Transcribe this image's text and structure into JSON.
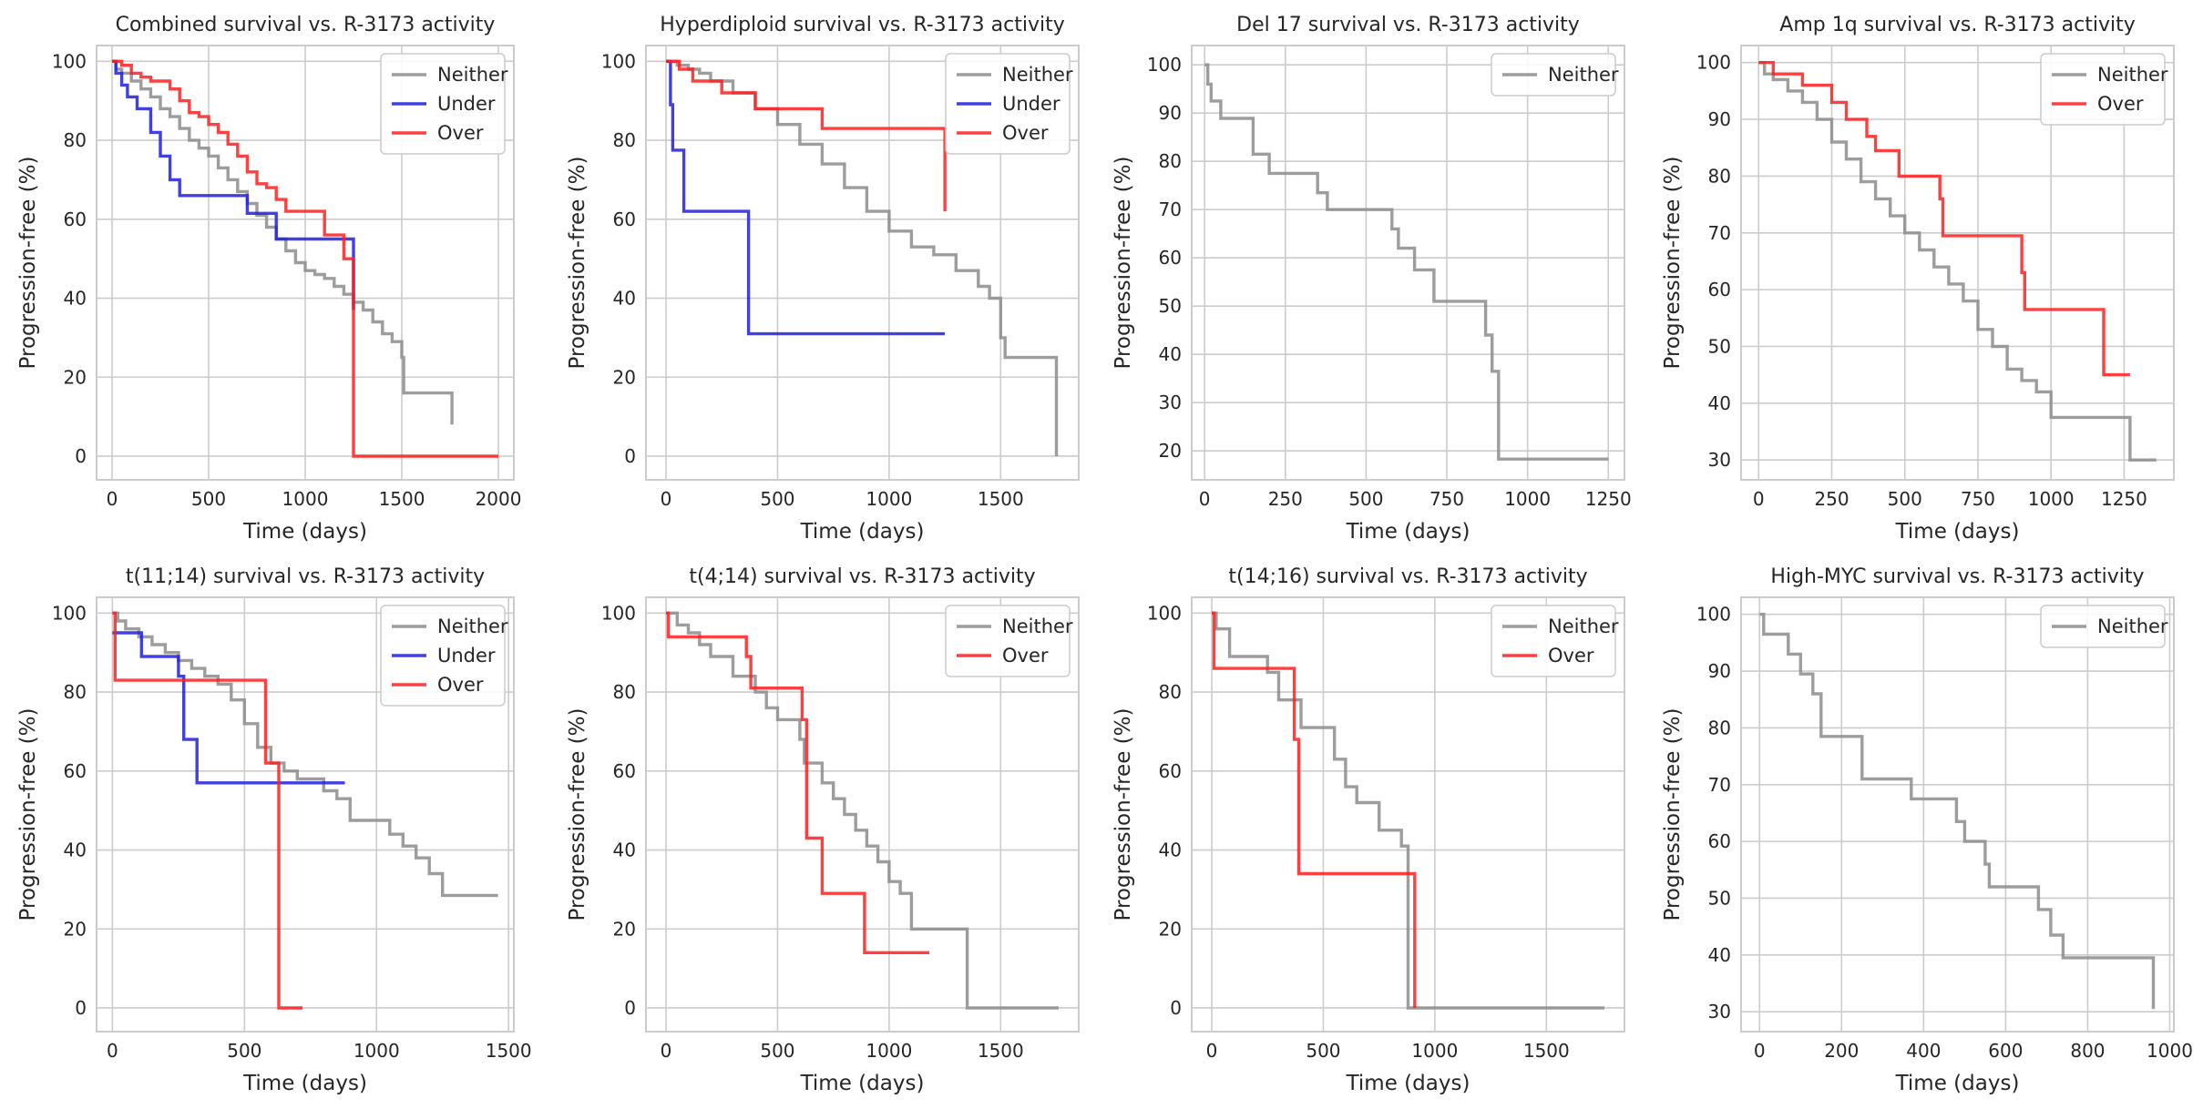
{
  "figure": {
    "colors": {
      "Neither": "#8c8c8c",
      "Under": "#1f1fe0",
      "Over": "#ff1f1f"
    }
  },
  "chart_data": [
    {
      "type": "line",
      "step": true,
      "title": "Combined survival vs. R-3173 activity",
      "xlabel": "Time (days)",
      "ylabel": "Progression-free (%)",
      "xlim": [
        -80,
        2080
      ],
      "ylim": [
        -6,
        104
      ],
      "xticks": [
        0,
        500,
        1000,
        1500,
        2000
      ],
      "yticks": [
        0,
        20,
        40,
        60,
        80,
        100
      ],
      "legend": "top-right",
      "series": [
        {
          "name": "Neither",
          "x": [
            0,
            20,
            50,
            100,
            150,
            200,
            250,
            300,
            350,
            400,
            450,
            500,
            550,
            600,
            650,
            700,
            750,
            800,
            850,
            900,
            950,
            1000,
            1050,
            1100,
            1150,
            1200,
            1250,
            1300,
            1350,
            1400,
            1450,
            1500,
            1510,
            1750,
            1760
          ],
          "y": [
            100,
            98,
            97,
            95,
            93,
            91,
            88,
            86,
            83,
            80,
            78,
            76,
            73,
            70,
            67,
            64,
            61,
            58,
            55,
            52,
            49,
            47,
            46,
            45,
            43,
            41,
            39,
            37,
            34,
            31,
            29,
            25,
            16,
            16,
            8
          ]
        },
        {
          "name": "Under",
          "x": [
            0,
            20,
            50,
            80,
            130,
            200,
            250,
            300,
            350,
            700,
            850,
            1250
          ],
          "y": [
            100,
            97,
            94,
            91,
            88,
            82,
            76,
            70,
            66,
            61.5,
            55,
            37
          ]
        },
        {
          "name": "Over",
          "x": [
            0,
            50,
            100,
            150,
            200,
            300,
            350,
            400,
            450,
            500,
            550,
            600,
            650,
            700,
            750,
            800,
            850,
            900,
            1100,
            1200,
            1250,
            2000
          ],
          "y": [
            100,
            99,
            97,
            96,
            95,
            93,
            90,
            87,
            86,
            84,
            82,
            79,
            76,
            72,
            69,
            68,
            65,
            62,
            56,
            50,
            0,
            0
          ]
        }
      ]
    },
    {
      "type": "line",
      "step": true,
      "title": "Hyperdiploid survival vs. R-3173 activity",
      "xlabel": "Time (days)",
      "ylabel": "Progression-free (%)",
      "xlim": [
        -90,
        1850
      ],
      "ylim": [
        -6,
        104
      ],
      "xticks": [
        0,
        500,
        1000,
        1500
      ],
      "yticks": [
        0,
        20,
        40,
        60,
        80,
        100
      ],
      "legend": "top-right",
      "series": [
        {
          "name": "Neither",
          "x": [
            0,
            50,
            100,
            150,
            200,
            300,
            400,
            500,
            600,
            700,
            800,
            900,
            1000,
            1100,
            1200,
            1300,
            1400,
            1450,
            1500,
            1520,
            1750
          ],
          "y": [
            100,
            99,
            98,
            97,
            95,
            92,
            88,
            84,
            79,
            74,
            68,
            62,
            57,
            53,
            51,
            47,
            43,
            40,
            30,
            25,
            0
          ]
        },
        {
          "name": "Under",
          "x": [
            0,
            20,
            30,
            80,
            370,
            1250
          ],
          "y": [
            100,
            89,
            77.5,
            62,
            31,
            31
          ]
        },
        {
          "name": "Over",
          "x": [
            0,
            60,
            120,
            250,
            400,
            700,
            1250
          ],
          "y": [
            100,
            98,
            95,
            92,
            88,
            83,
            62
          ]
        }
      ]
    },
    {
      "type": "line",
      "step": true,
      "title": "Del 17 survival vs. R-3173 activity",
      "xlabel": "Time (days)",
      "ylabel": "Progression-free (%)",
      "xlim": [
        -40,
        1300
      ],
      "ylim": [
        14,
        104
      ],
      "xticks": [
        0,
        250,
        500,
        750,
        1000,
        1250
      ],
      "yticks": [
        20,
        30,
        40,
        50,
        60,
        70,
        80,
        90,
        100
      ],
      "legend": "top-right",
      "series": [
        {
          "name": "Neither",
          "x": [
            0,
            10,
            20,
            50,
            150,
            200,
            350,
            380,
            580,
            600,
            650,
            710,
            870,
            890,
            910,
            1250
          ],
          "y": [
            100,
            96,
            92.5,
            88.9,
            81.5,
            77.5,
            73.5,
            70,
            66,
            62,
            57.5,
            51,
            44,
            36.5,
            18.3,
            18.3
          ]
        }
      ]
    },
    {
      "type": "line",
      "step": true,
      "title": "Amp 1q survival vs. R-3173 activity",
      "xlabel": "Time (days)",
      "ylabel": "Progression-free (%)",
      "xlim": [
        -60,
        1420
      ],
      "ylim": [
        26.5,
        103
      ],
      "xticks": [
        0,
        250,
        500,
        750,
        1000,
        1250
      ],
      "yticks": [
        30,
        40,
        50,
        60,
        70,
        80,
        90,
        100
      ],
      "legend": "top-right",
      "series": [
        {
          "name": "Neither",
          "x": [
            0,
            20,
            50,
            100,
            150,
            200,
            250,
            300,
            350,
            400,
            450,
            500,
            550,
            600,
            650,
            700,
            750,
            800,
            850,
            900,
            950,
            1000,
            1250,
            1270,
            1360
          ],
          "y": [
            100,
            98,
            97,
            95,
            93,
            90,
            86,
            83,
            79,
            76,
            73,
            70,
            67,
            64,
            61,
            58,
            53,
            50,
            46,
            44,
            42,
            37.5,
            37.5,
            30,
            30
          ]
        },
        {
          "name": "Over",
          "x": [
            0,
            50,
            150,
            250,
            300,
            370,
            400,
            480,
            620,
            630,
            900,
            910,
            1180,
            1270
          ],
          "y": [
            100,
            98,
            96,
            93,
            90,
            87,
            84.5,
            80,
            76,
            69.5,
            63,
            56.5,
            45,
            45
          ]
        }
      ]
    },
    {
      "type": "line",
      "step": true,
      "title": "t(11;14) survival vs. R-3173 activity",
      "xlabel": "Time (days)",
      "ylabel": "Progression-free (%)",
      "xlim": [
        -60,
        1520
      ],
      "ylim": [
        -6,
        104
      ],
      "xticks": [
        0,
        500,
        1000,
        1500
      ],
      "yticks": [
        0,
        20,
        40,
        60,
        80,
        100
      ],
      "legend": "top-right",
      "series": [
        {
          "name": "Neither",
          "x": [
            0,
            20,
            50,
            100,
            150,
            200,
            250,
            300,
            350,
            400,
            450,
            500,
            550,
            600,
            650,
            700,
            800,
            850,
            900,
            1050,
            1100,
            1150,
            1200,
            1250,
            1460
          ],
          "y": [
            100,
            98,
            96,
            94,
            92,
            90,
            88,
            86,
            84,
            82,
            78,
            72,
            66,
            62,
            60,
            58,
            55,
            53,
            47.5,
            44,
            41,
            38,
            34,
            28.5,
            28.5
          ]
        },
        {
          "name": "Under",
          "x": [
            0,
            110,
            250,
            270,
            320,
            880
          ],
          "y": [
            95,
            89,
            84,
            68,
            57,
            57
          ]
        },
        {
          "name": "Over",
          "x": [
            0,
            10,
            550,
            580,
            630,
            720
          ],
          "y": [
            100,
            83,
            83,
            62,
            0,
            0
          ]
        }
      ]
    },
    {
      "type": "line",
      "step": true,
      "title": "t(4;14) survival vs. R-3173 activity",
      "xlabel": "Time (days)",
      "ylabel": "Progression-free (%)",
      "xlim": [
        -90,
        1850
      ],
      "ylim": [
        -6,
        104
      ],
      "xticks": [
        0,
        500,
        1000,
        1500
      ],
      "yticks": [
        0,
        20,
        40,
        60,
        80,
        100
      ],
      "legend": "top-right",
      "series": [
        {
          "name": "Neither",
          "x": [
            0,
            50,
            100,
            150,
            200,
            300,
            400,
            450,
            500,
            600,
            620,
            700,
            750,
            800,
            850,
            900,
            950,
            1000,
            1050,
            1100,
            1350,
            1760
          ],
          "y": [
            100,
            97,
            95,
            92,
            89,
            84,
            80,
            76,
            73,
            68,
            62,
            57,
            53,
            49,
            45,
            41,
            37,
            32,
            29,
            20,
            0,
            0
          ]
        },
        {
          "name": "Over",
          "x": [
            0,
            10,
            360,
            380,
            610,
            630,
            700,
            890,
            1180
          ],
          "y": [
            100,
            94,
            89,
            81,
            73,
            43,
            29,
            14,
            14
          ]
        }
      ]
    },
    {
      "type": "line",
      "step": true,
      "title": "t(14;16) survival vs. R-3173 activity",
      "xlabel": "Time (days)",
      "ylabel": "Progression-free (%)",
      "xlim": [
        -90,
        1850
      ],
      "ylim": [
        -6,
        104
      ],
      "xticks": [
        0,
        500,
        1000,
        1500
      ],
      "yticks": [
        0,
        20,
        40,
        60,
        80,
        100
      ],
      "legend": "top-right",
      "series": [
        {
          "name": "Neither",
          "x": [
            0,
            20,
            80,
            250,
            300,
            400,
            550,
            600,
            650,
            750,
            850,
            880,
            1760
          ],
          "y": [
            100,
            96,
            89,
            85,
            78,
            71,
            63,
            56,
            52,
            45,
            41,
            0,
            0
          ]
        },
        {
          "name": "Over",
          "x": [
            0,
            10,
            370,
            390,
            910
          ],
          "y": [
            100,
            86,
            68,
            34,
            0
          ]
        }
      ]
    },
    {
      "type": "line",
      "step": true,
      "title": "High-MYC survival vs. R-3173 activity",
      "xlabel": "Time (days)",
      "ylabel": "Progression-free (%)",
      "xlim": [
        -45,
        1010
      ],
      "ylim": [
        26.5,
        103
      ],
      "xticks": [
        0,
        200,
        400,
        600,
        800,
        1000
      ],
      "yticks": [
        30,
        40,
        50,
        60,
        70,
        80,
        90,
        100
      ],
      "legend": "top-right",
      "series": [
        {
          "name": "Neither",
          "x": [
            0,
            10,
            70,
            100,
            130,
            150,
            250,
            370,
            480,
            500,
            550,
            560,
            680,
            710,
            740,
            960
          ],
          "y": [
            100,
            96.5,
            93,
            89.5,
            86,
            78.5,
            71,
            67.5,
            63.5,
            60,
            56,
            52,
            48,
            43.5,
            39.5,
            30.5
          ]
        }
      ]
    }
  ]
}
